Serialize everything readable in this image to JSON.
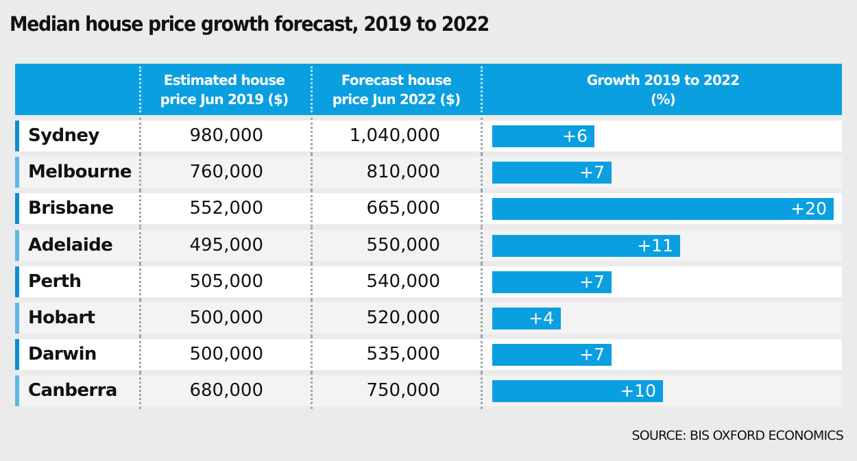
{
  "title": "Median house price growth forecast, 2019 to 2022",
  "source": "SOURCE: BIS OXFORD ECONOMICS",
  "colors": {
    "header_bg": "#0a9fe0",
    "bar": "#0a9fe0",
    "accent_dark": "#0a8fd0",
    "accent_light": "#5db8e6",
    "page_bg": "#ebebeb"
  },
  "chart_data": {
    "type": "table",
    "title": "Median house price growth forecast, 2019 to 2022",
    "columns": [
      {
        "line1": "",
        "line2": ""
      },
      {
        "line1": "Estimated house",
        "line2": "price Jun 2019 ($)"
      },
      {
        "line1": "Forecast house",
        "line2": "price Jun 2022 ($)"
      },
      {
        "line1": "Growth 2019 to 2022",
        "line2": "(%)"
      }
    ],
    "bar_max": 20,
    "rows": [
      {
        "city": "Sydney",
        "est_2019": "980,000",
        "forecast_2022": "1,040,000",
        "growth": 6,
        "growth_label": "+6"
      },
      {
        "city": "Melbourne",
        "est_2019": "760,000",
        "forecast_2022": "810,000",
        "growth": 7,
        "growth_label": "+7"
      },
      {
        "city": "Brisbane",
        "est_2019": "552,000",
        "forecast_2022": "665,000",
        "growth": 20,
        "growth_label": "+20"
      },
      {
        "city": "Adelaide",
        "est_2019": "495,000",
        "forecast_2022": "550,000",
        "growth": 11,
        "growth_label": "+11"
      },
      {
        "city": "Perth",
        "est_2019": "505,000",
        "forecast_2022": "540,000",
        "growth": 7,
        "growth_label": "+7"
      },
      {
        "city": "Hobart",
        "est_2019": "500,000",
        "forecast_2022": "520,000",
        "growth": 4,
        "growth_label": "+4"
      },
      {
        "city": "Darwin",
        "est_2019": "500,000",
        "forecast_2022": "535,000",
        "growth": 7,
        "growth_label": "+7"
      },
      {
        "city": "Canberra",
        "est_2019": "680,000",
        "forecast_2022": "750,000",
        "growth": 10,
        "growth_label": "+10"
      }
    ],
    "source": "SOURCE: BIS OXFORD ECONOMICS"
  }
}
